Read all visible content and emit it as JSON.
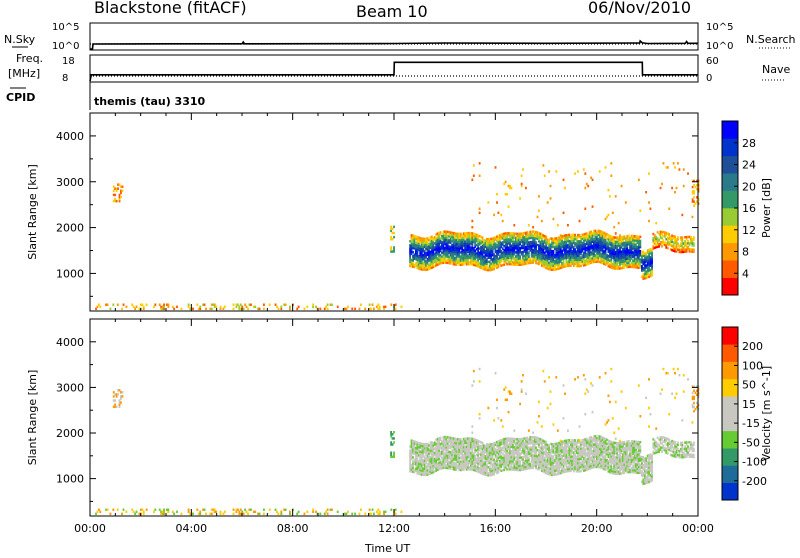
{
  "header": {
    "station": "Blackstone (fitACF)",
    "beam": "Beam 10",
    "date": "06/Nov/2010"
  },
  "top_labels": {
    "nsky": "N.Sky",
    "nsky_hi": "10^5",
    "nsky_lo": "10^0",
    "nsearch": "N.Search",
    "nsearch_hi": "10^5",
    "nsearch_lo": "10^0",
    "freq": "Freq.",
    "freq_unit": "[MHz]",
    "freq_hi": "18",
    "freq_lo": "8",
    "nave": "Nave",
    "nave_hi": "60",
    "nave_lo": "0",
    "cpid": "CPID",
    "cpid_value": "themis (tau) 3310"
  },
  "chart_data": [
    {
      "type": "line",
      "name": "nsky-nsearch",
      "x_range": [
        0,
        24
      ],
      "series": [
        {
          "name": "N.Sky",
          "style": "solid",
          "x": [
            0,
            0.1,
            0.12,
            3,
            6,
            6.05,
            6.1,
            12,
            14,
            18,
            21.7,
            21.72,
            21.8,
            22,
            23.5,
            23.55,
            23.6,
            24
          ],
          "y": [
            0,
            0,
            1.0,
            1.05,
            1.05,
            1.4,
            1.05,
            1.1,
            1.2,
            1.15,
            1.2,
            1.6,
            1.25,
            1.1,
            1.15,
            1.5,
            1.15,
            1.15
          ]
        },
        {
          "name": "N.Search",
          "style": "dotted",
          "x": [
            0,
            24
          ],
          "y": [
            1.0,
            1.0
          ]
        }
      ],
      "ylim": [
        0,
        5
      ]
    },
    {
      "type": "line",
      "name": "freq-nave",
      "x_range": [
        0,
        24
      ],
      "series": [
        {
          "name": "Freq.",
          "style": "solid",
          "x": [
            0,
            0.05,
            12,
            12.01,
            21.8,
            21.81,
            24
          ],
          "y": [
            8,
            10.5,
            10.5,
            15.5,
            15.5,
            10.5,
            10.5
          ],
          "ylim": [
            8,
            18
          ]
        },
        {
          "name": "Nave",
          "style": "dotted",
          "x": [
            0,
            24
          ],
          "y": [
            12,
            12
          ],
          "ylim": [
            0,
            60
          ]
        }
      ]
    },
    {
      "type": "heatmap",
      "name": "power",
      "xlabel": "Time UT",
      "ylabel": "Slant Range [km]",
      "x_range": [
        0,
        24
      ],
      "ylim": [
        180,
        4500
      ],
      "yticks": [
        1000,
        2000,
        3000,
        4000
      ],
      "colorbar": {
        "label": "Power [dB]",
        "ticks": [
          "28",
          "24",
          "20",
          "16",
          "12",
          "8",
          "4"
        ],
        "colors": [
          "#ff0000",
          "#ff5a00",
          "#ff9900",
          "#ffcc00",
          "#99cc33",
          "#339966",
          "#2a7a8a",
          "#1f4f99",
          "#0033cc",
          "#0000ff"
        ]
      },
      "regions": [
        {
          "kind": "ground",
          "t0": 0.2,
          "t1": 12.3,
          "r0": 200,
          "r1": 330,
          "density": 0.25,
          "levels": [
            1,
            2,
            3,
            4
          ]
        },
        {
          "kind": "echo",
          "t0": 12.6,
          "t1": 21.7,
          "center": 1480,
          "halfwidth": 340,
          "density": 0.9,
          "core_level": 9,
          "edge_level": 2
        },
        {
          "kind": "echo",
          "t0": 21.75,
          "t1": 22.2,
          "center": 1200,
          "halfwidth": 300,
          "density": 0.85,
          "core_level": 9,
          "edge_level": 2
        },
        {
          "kind": "echo",
          "t0": 22.2,
          "t1": 23.8,
          "center": 1650,
          "halfwidth": 180,
          "density": 0.7,
          "core_level": 4,
          "edge_level": 1
        },
        {
          "kind": "sparse",
          "t0": 15,
          "t1": 23.8,
          "r0": 1800,
          "r1": 3400,
          "density": 0.02,
          "levels": [
            1,
            2,
            3
          ]
        },
        {
          "kind": "sparse",
          "t0": 0.9,
          "t1": 1.3,
          "r0": 2550,
          "r1": 2950,
          "density": 0.35,
          "levels": [
            1,
            3
          ]
        },
        {
          "kind": "sparse",
          "t0": 11.85,
          "t1": 12.0,
          "r0": 1450,
          "r1": 2000,
          "density": 0.5,
          "levels": [
            3,
            5
          ]
        },
        {
          "kind": "sparse",
          "t0": 23.75,
          "t1": 24,
          "r0": 2450,
          "r1": 3000,
          "density": 0.5,
          "levels": [
            1,
            3
          ]
        }
      ]
    },
    {
      "type": "heatmap",
      "name": "velocity",
      "xlabel": "Time UT",
      "ylabel": "Slant Range [km]",
      "x_range": [
        0,
        24
      ],
      "ylim": [
        180,
        4500
      ],
      "yticks": [
        1000,
        2000,
        3000,
        4000
      ],
      "xticks": [
        "00:00",
        "04:00",
        "08:00",
        "12:00",
        "16:00",
        "20:00",
        "00:00"
      ],
      "colorbar": {
        "label": "Velocity [m s^-1]",
        "ticks": [
          "200",
          "100",
          "50",
          "15",
          "-15",
          "-50",
          "-100",
          "-200"
        ],
        "colors": [
          "#0033cc",
          "#1f6b99",
          "#339966",
          "#66cc33",
          "#c8c8c0",
          "#c8c8c0",
          "#ffcc00",
          "#ff9900",
          "#ff5a00",
          "#ff0000"
        ]
      },
      "regions": [
        {
          "kind": "ground",
          "t0": 0.2,
          "t1": 12.3,
          "r0": 200,
          "r1": 330,
          "density": 0.25,
          "levels": [
            3,
            6,
            7
          ]
        },
        {
          "kind": "echo",
          "t0": 12.6,
          "t1": 21.7,
          "center": 1480,
          "halfwidth": 340,
          "density": 0.9,
          "core_level": 4,
          "edge_level": 4
        },
        {
          "kind": "echo",
          "t0": 21.75,
          "t1": 22.2,
          "center": 1200,
          "halfwidth": 300,
          "density": 0.85,
          "core_level": 4,
          "edge_level": 4
        },
        {
          "kind": "echo",
          "t0": 22.2,
          "t1": 23.8,
          "center": 1650,
          "halfwidth": 180,
          "density": 0.7,
          "core_level": 4,
          "edge_level": 4
        },
        {
          "kind": "sparse",
          "t0": 15,
          "t1": 23.8,
          "r0": 1800,
          "r1": 3400,
          "density": 0.02,
          "levels": [
            4,
            6,
            7
          ]
        },
        {
          "kind": "sparse",
          "t0": 0.9,
          "t1": 1.3,
          "r0": 2550,
          "r1": 2950,
          "density": 0.35,
          "levels": [
            4,
            7
          ]
        },
        {
          "kind": "sparse",
          "t0": 11.85,
          "t1": 12.0,
          "r0": 1450,
          "r1": 2000,
          "density": 0.5,
          "levels": [
            2,
            3
          ]
        },
        {
          "kind": "sparse",
          "t0": 23.75,
          "t1": 24,
          "r0": 2450,
          "r1": 3000,
          "density": 0.5,
          "levels": [
            4,
            7
          ]
        }
      ]
    }
  ]
}
